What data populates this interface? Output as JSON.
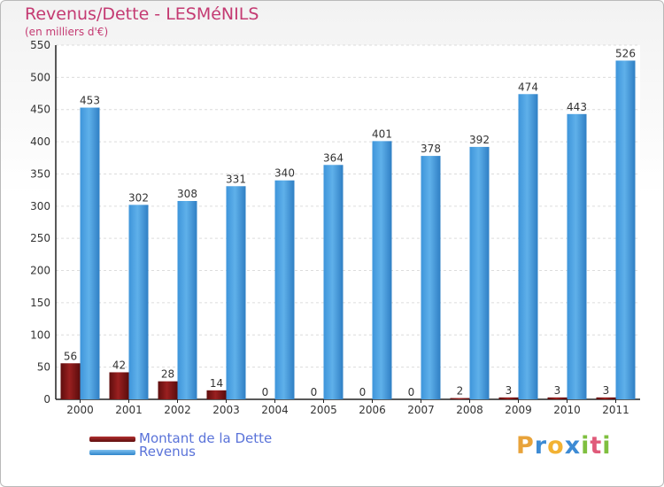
{
  "title": "Revenus/Dette - LESMéNILS",
  "subtitle": "(en milliers d'€)",
  "legend": [
    {
      "label": "Montant de la Dette",
      "color": "#7a1515"
    },
    {
      "label": "Revenus",
      "color": "#4fa3e0"
    }
  ],
  "logo": {
    "letters": [
      "P",
      "r",
      "o",
      "x",
      "i",
      "t",
      "i"
    ],
    "colors": [
      "#e8a33a",
      "#3d8bd4",
      "#f2b233",
      "#3d8bd4",
      "#7fbf3f",
      "#e05a7a",
      "#7fbf3f"
    ]
  },
  "chart_data": {
    "type": "bar",
    "categories": [
      "2000",
      "2001",
      "2002",
      "2003",
      "2004",
      "2005",
      "2006",
      "2007",
      "2008",
      "2009",
      "2010",
      "2011"
    ],
    "series": [
      {
        "name": "Montant de la Dette",
        "color": "#7a1515",
        "values": [
          56,
          42,
          28,
          14,
          0,
          0,
          0,
          0,
          2,
          3,
          3,
          3
        ]
      },
      {
        "name": "Revenus",
        "color": "#4fa3e0",
        "values": [
          453,
          302,
          308,
          331,
          340,
          364,
          401,
          378,
          392,
          474,
          443,
          526
        ]
      }
    ],
    "ylim": [
      0,
      550
    ],
    "yticks": [
      0,
      50,
      100,
      150,
      200,
      250,
      300,
      350,
      400,
      450,
      500,
      550
    ],
    "grid": true
  }
}
